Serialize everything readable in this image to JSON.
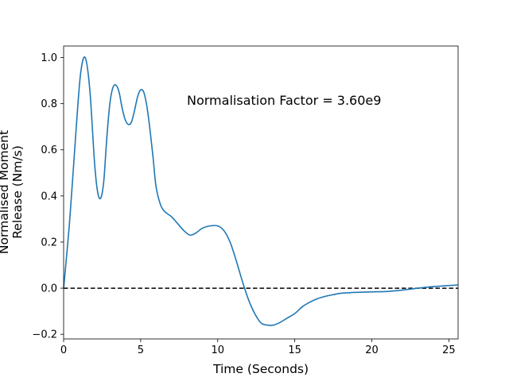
{
  "chart_data": {
    "type": "line",
    "xlabel": "Time (Seconds)",
    "ylabel": "Normalised Moment Release (Nm/s)",
    "ylabel_lines": [
      "Normalised Moment",
      "Release (Nm/s)"
    ],
    "annotation": "Normalisation Factor = 3.60e9",
    "xlim": [
      0,
      25.6
    ],
    "ylim": [
      -0.22,
      1.05
    ],
    "xticks": [
      0,
      5,
      10,
      15,
      20,
      25
    ],
    "yticks": [
      -0.2,
      0.0,
      0.2,
      0.4,
      0.6,
      0.8,
      1.0
    ],
    "xtick_labels": [
      "0",
      "5",
      "10",
      "15",
      "20",
      "25"
    ],
    "ytick_labels": [
      "−0.2",
      "0.0",
      "0.2",
      "0.4",
      "0.6",
      "0.8",
      "1.0"
    ],
    "grid": false,
    "series": [
      {
        "color": "#1f77b4",
        "x": [
          0,
          0.4,
          0.8,
          1.1,
          1.4,
          1.7,
          2.0,
          2.2,
          2.4,
          2.6,
          2.8,
          3.0,
          3.2,
          3.4,
          3.6,
          3.8,
          4.0,
          4.2,
          4.4,
          4.6,
          4.8,
          5.0,
          5.2,
          5.4,
          5.6,
          5.8,
          6.0,
          6.3,
          6.6,
          7.0,
          7.4,
          7.8,
          8.2,
          8.6,
          9.0,
          9.5,
          10.0,
          10.4,
          10.8,
          11.2,
          11.6,
          12.0,
          12.4,
          12.8,
          13.2,
          13.6,
          14.0,
          14.5,
          15.0,
          15.5,
          16.0,
          16.5,
          17.0,
          17.5,
          18.0,
          19.0,
          20.0,
          21.0,
          22.0,
          23.0,
          24.0,
          25.6
        ],
        "y": [
          0.0,
          0.3,
          0.68,
          0.93,
          1.0,
          0.86,
          0.55,
          0.42,
          0.39,
          0.46,
          0.65,
          0.8,
          0.87,
          0.88,
          0.85,
          0.78,
          0.73,
          0.71,
          0.72,
          0.77,
          0.83,
          0.86,
          0.85,
          0.79,
          0.69,
          0.57,
          0.44,
          0.36,
          0.33,
          0.31,
          0.28,
          0.25,
          0.23,
          0.24,
          0.26,
          0.27,
          0.27,
          0.25,
          0.2,
          0.12,
          0.03,
          -0.05,
          -0.11,
          -0.15,
          -0.16,
          -0.16,
          -0.15,
          -0.13,
          -0.11,
          -0.08,
          -0.06,
          -0.045,
          -0.035,
          -0.028,
          -0.022,
          -0.018,
          -0.016,
          -0.014,
          -0.008,
          0.0,
          0.007,
          0.014
        ]
      }
    ],
    "reference_line": {
      "y": 0.0,
      "style": "dashed",
      "color": "#000000"
    }
  }
}
